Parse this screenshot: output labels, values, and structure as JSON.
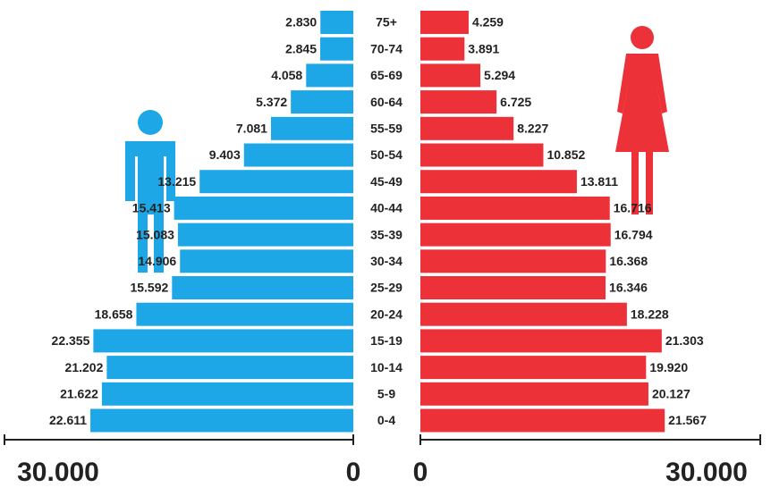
{
  "chart_data": {
    "type": "pyramid",
    "categories": [
      "75+",
      "70-74",
      "65-69",
      "60-64",
      "55-59",
      "50-54",
      "45-49",
      "40-44",
      "35-39",
      "30-34",
      "25-29",
      "20-24",
      "15-19",
      "10-14",
      "5-9",
      "0-4"
    ],
    "series": [
      {
        "color": "#1ea7e6",
        "values": [
          2830,
          2845,
          4058,
          5372,
          7081,
          9403,
          13215,
          15413,
          15083,
          14906,
          15592,
          18658,
          22355,
          21202,
          21622,
          22611
        ],
        "value_labels": [
          "2.830",
          "2.845",
          "4.058",
          "5.372",
          "7.081",
          "9.403",
          "13.215",
          "15.413",
          "15.083",
          "14.906",
          "15.592",
          "18.658",
          "22.355",
          "21.202",
          "21.622",
          "22.611"
        ]
      },
      {
        "color": "#ec3138",
        "values": [
          4259,
          3891,
          5294,
          6725,
          8227,
          10852,
          13811,
          16716,
          16794,
          16368,
          16346,
          18228,
          21303,
          19920,
          20127,
          21567
        ],
        "value_labels": [
          "4.259",
          "3.891",
          "5.294",
          "6.725",
          "8.227",
          "10.852",
          "13.811",
          "16.716",
          "16.794",
          "16.368",
          "16.346",
          "18.228",
          "21.303",
          "19.920",
          "20.127",
          "21.567"
        ]
      }
    ],
    "xlim": [
      0,
      30000
    ],
    "xticks": [
      0,
      {
        "value": 30000,
        "label": "30.000"
      }
    ]
  }
}
